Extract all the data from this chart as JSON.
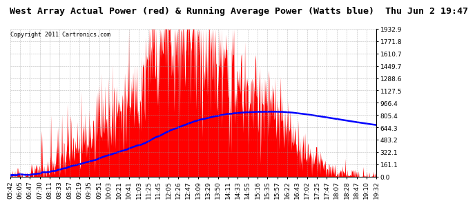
{
  "title": "West Array Actual Power (red) & Running Average Power (Watts blue)  Thu Jun 2 19:47",
  "copyright": "Copyright 2011 Cartronics.com",
  "yticks": [
    0.0,
    161.1,
    322.1,
    483.2,
    644.3,
    805.4,
    966.4,
    1127.5,
    1288.6,
    1449.7,
    1610.7,
    1771.8,
    1932.9
  ],
  "ymax": 1932.9,
  "ymin": 0.0,
  "xtick_labels": [
    "05:42",
    "06:05",
    "06:47",
    "07:30",
    "08:11",
    "08:33",
    "08:57",
    "09:19",
    "09:35",
    "09:51",
    "10:03",
    "10:21",
    "10:41",
    "11:03",
    "11:25",
    "11:45",
    "12:05",
    "12:26",
    "12:47",
    "13:09",
    "13:29",
    "13:50",
    "14:11",
    "14:33",
    "14:55",
    "15:16",
    "15:35",
    "15:57",
    "16:22",
    "16:43",
    "17:02",
    "17:25",
    "17:47",
    "18:07",
    "18:28",
    "18:47",
    "19:10",
    "19:32"
  ],
  "bar_color": "#FF0000",
  "line_color": "#0000FF",
  "background_color": "#FFFFFF",
  "grid_color": "#999999",
  "title_fontsize": 9.5,
  "copyright_fontsize": 6,
  "tick_fontsize": 6.5
}
